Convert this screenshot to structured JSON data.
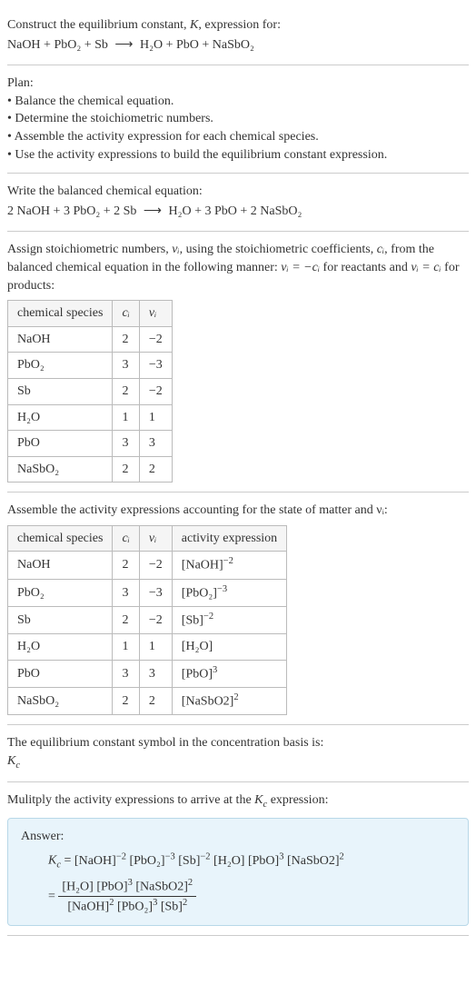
{
  "intro": {
    "line1": "Construct the equilibrium constant, ",
    "K": "K",
    "line1b": ", expression for:",
    "eq_lhs": "NaOH + PbO₂ + Sb",
    "eq_rhs": "H₂O + PbO + NaSbO₂"
  },
  "plan": {
    "title": "Plan:",
    "items": [
      "• Balance the chemical equation.",
      "• Determine the stoichiometric numbers.",
      "• Assemble the activity expression for each chemical species.",
      "• Use the activity expressions to build the equilibrium constant expression."
    ]
  },
  "balanced": {
    "title": "Write the balanced chemical equation:",
    "lhs": "2 NaOH + 3 PbO₂ + 2 Sb",
    "rhs": "H₂O + 3 PbO + 2 NaSbO₂"
  },
  "stoich_intro": {
    "text1": "Assign stoichiometric numbers, ",
    "vi": "νᵢ",
    "text2": ", using the stoichiometric coefficients, ",
    "ci": "cᵢ",
    "text3": ", from the balanced chemical equation in the following manner: ",
    "rel1": "νᵢ = −cᵢ",
    "text4": " for reactants and ",
    "rel2": "νᵢ = cᵢ",
    "text5": " for products:"
  },
  "table1": {
    "headers": [
      "chemical species",
      "cᵢ",
      "νᵢ"
    ],
    "rows": [
      [
        "NaOH",
        "2",
        "−2"
      ],
      [
        "PbO₂",
        "3",
        "−3"
      ],
      [
        "Sb",
        "2",
        "−2"
      ],
      [
        "H₂O",
        "1",
        "1"
      ],
      [
        "PbO",
        "3",
        "3"
      ],
      [
        "NaSbO₂",
        "2",
        "2"
      ]
    ]
  },
  "assemble": "Assemble the activity expressions accounting for the state of matter and νᵢ:",
  "table2": {
    "headers": [
      "chemical species",
      "cᵢ",
      "νᵢ",
      "activity expression"
    ],
    "rows": [
      {
        "s": "NaOH",
        "c": "2",
        "v": "−2",
        "a_base": "[NaOH]",
        "a_exp": "−2"
      },
      {
        "s": "PbO₂",
        "c": "3",
        "v": "−3",
        "a_base": "[PbO₂]",
        "a_exp": "−3"
      },
      {
        "s": "Sb",
        "c": "2",
        "v": "−2",
        "a_base": "[Sb]",
        "a_exp": "−2"
      },
      {
        "s": "H₂O",
        "c": "1",
        "v": "1",
        "a_base": "[H₂O]",
        "a_exp": ""
      },
      {
        "s": "PbO",
        "c": "3",
        "v": "3",
        "a_base": "[PbO]",
        "a_exp": "3"
      },
      {
        "s": "NaSbO₂",
        "c": "2",
        "v": "2",
        "a_base": "[NaSbO2]",
        "a_exp": "2"
      }
    ]
  },
  "symbol_text": "The equilibrium constant symbol in the concentration basis is:",
  "Kc": "K",
  "Kc_sub": "c",
  "multiply": "Mulitply the activity expressions to arrive at the ",
  "multiply2": " expression:",
  "answer": {
    "label": "Answer:",
    "line1_pre": " = ",
    "terms": [
      {
        "b": "[NaOH]",
        "e": "−2"
      },
      {
        "b": "[PbO₂]",
        "e": "−3"
      },
      {
        "b": "[Sb]",
        "e": "−2"
      },
      {
        "b": "[H₂O]",
        "e": ""
      },
      {
        "b": "[PbO]",
        "e": "3"
      },
      {
        "b": "[NaSbO2]",
        "e": "2"
      }
    ],
    "num_terms": [
      {
        "b": "[H₂O]",
        "e": ""
      },
      {
        "b": "[PbO]",
        "e": "3"
      },
      {
        "b": "[NaSbO2]",
        "e": "2"
      }
    ],
    "den_terms": [
      {
        "b": "[NaOH]",
        "e": "2"
      },
      {
        "b": "[PbO₂]",
        "e": "3"
      },
      {
        "b": "[Sb]",
        "e": "2"
      }
    ]
  }
}
